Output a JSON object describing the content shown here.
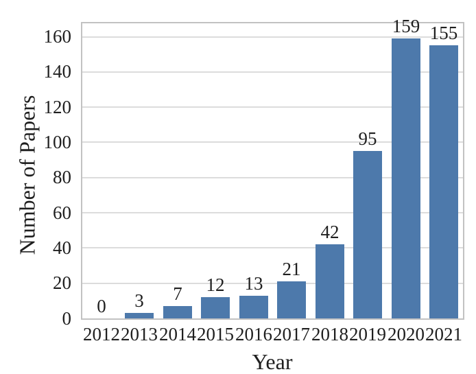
{
  "chart_data": {
    "type": "bar",
    "title": "",
    "categories": [
      "2012",
      "2013",
      "2014",
      "2015",
      "2016",
      "2017",
      "2018",
      "2019",
      "2020",
      "2021"
    ],
    "values": [
      0,
      3,
      7,
      12,
      13,
      21,
      42,
      95,
      159,
      155
    ],
    "value_labels": [
      "0",
      "3",
      "7",
      "12",
      "13",
      "21",
      "42",
      "95",
      "159",
      "155"
    ],
    "xlabel": "Year",
    "ylabel": "Number of Papers",
    "yticks": [
      0,
      20,
      40,
      60,
      80,
      100,
      120,
      140,
      160
    ],
    "ylim": [
      0,
      167.6
    ],
    "grid": true,
    "legend": "none",
    "bar_color": "#4d79ab",
    "gridline_color": "#dcdcdc",
    "spine_color": "#c2c2c2",
    "text_color": "#1f1f1f"
  }
}
